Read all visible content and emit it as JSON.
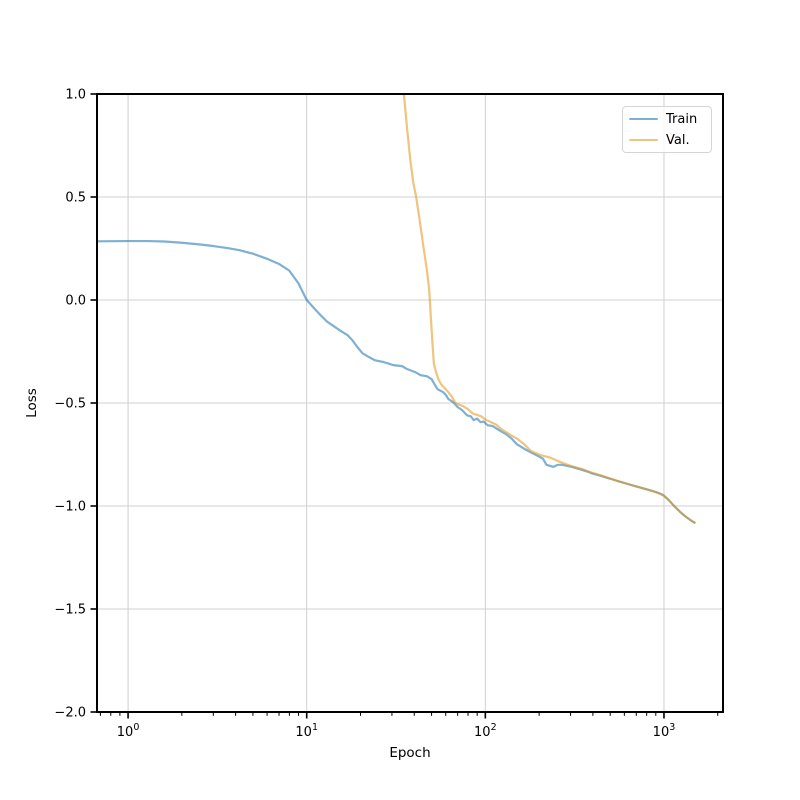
{
  "chart_data": {
    "type": "line",
    "title": "",
    "xlabel": "Epoch",
    "ylabel": "Loss",
    "x_scale": "log",
    "xlim": [
      0.67,
      2140
    ],
    "ylim": [
      -2.0,
      1.0
    ],
    "grid": true,
    "background_color": "#ffffff",
    "grid_color": "#d0d0d0",
    "spine_color": "#000000",
    "x_ticks": [
      {
        "value": 1,
        "base": "10",
        "exp": "0"
      },
      {
        "value": 10,
        "base": "10",
        "exp": "1"
      },
      {
        "value": 100,
        "base": "10",
        "exp": "2"
      },
      {
        "value": 1000,
        "base": "10",
        "exp": "3"
      }
    ],
    "y_ticks": [
      {
        "value": 1.0,
        "label": "1.0"
      },
      {
        "value": 0.5,
        "label": "0.5"
      },
      {
        "value": 0.0,
        "label": "0.0"
      },
      {
        "value": -0.5,
        "label": "−0.5"
      },
      {
        "value": -1.0,
        "label": "−1.0"
      },
      {
        "value": -1.5,
        "label": "−1.5"
      },
      {
        "value": -2.0,
        "label": "−2.0"
      }
    ],
    "legend": {
      "position": "upper-right",
      "entries": [
        {
          "label": "Train",
          "display_color": "#7db0d3"
        },
        {
          "label": "Val.",
          "display_color": "#efc47f"
        }
      ]
    },
    "series": [
      {
        "name": "Train",
        "color": "#1f77b4",
        "opacity": 0.58,
        "points": [
          [
            0.67,
            0.285
          ],
          [
            1.0,
            0.286
          ],
          [
            1.3,
            0.286
          ],
          [
            1.6,
            0.284
          ],
          [
            2.0,
            0.278
          ],
          [
            2.5,
            0.27
          ],
          [
            3.0,
            0.262
          ],
          [
            3.6,
            0.252
          ],
          [
            4.2,
            0.242
          ],
          [
            5.0,
            0.225
          ],
          [
            6.0,
            0.2
          ],
          [
            7.0,
            0.175
          ],
          [
            8.0,
            0.142
          ],
          [
            9.0,
            0.08
          ],
          [
            10.0,
            0.0
          ],
          [
            11.0,
            -0.04
          ],
          [
            12.0,
            -0.075
          ],
          [
            13.0,
            -0.105
          ],
          [
            14.1,
            -0.126
          ],
          [
            15.5,
            -0.15
          ],
          [
            16.9,
            -0.17
          ],
          [
            18.0,
            -0.195
          ],
          [
            19.2,
            -0.228
          ],
          [
            20.5,
            -0.258
          ],
          [
            21.8,
            -0.272
          ],
          [
            24.0,
            -0.292
          ],
          [
            26.9,
            -0.301
          ],
          [
            30.5,
            -0.316
          ],
          [
            34.2,
            -0.321
          ],
          [
            36.4,
            -0.335
          ],
          [
            40.5,
            -0.35
          ],
          [
            43.4,
            -0.365
          ],
          [
            47.0,
            -0.37
          ],
          [
            50.0,
            -0.384
          ],
          [
            52.0,
            -0.41
          ],
          [
            54.0,
            -0.433
          ],
          [
            58.0,
            -0.447
          ],
          [
            60.0,
            -0.46
          ],
          [
            62.0,
            -0.48
          ],
          [
            66.0,
            -0.496
          ],
          [
            70.0,
            -0.52
          ],
          [
            74.0,
            -0.534
          ],
          [
            79.0,
            -0.56
          ],
          [
            83.0,
            -0.565
          ],
          [
            86.0,
            -0.583
          ],
          [
            90.0,
            -0.576
          ],
          [
            94.0,
            -0.593
          ],
          [
            98.0,
            -0.59
          ],
          [
            103.0,
            -0.608
          ],
          [
            110.0,
            -0.612
          ],
          [
            117.0,
            -0.627
          ],
          [
            122.0,
            -0.637
          ],
          [
            130.0,
            -0.65
          ],
          [
            140.0,
            -0.672
          ],
          [
            150.0,
            -0.7
          ],
          [
            165.0,
            -0.722
          ],
          [
            180.0,
            -0.74
          ],
          [
            195.0,
            -0.755
          ],
          [
            210.0,
            -0.77
          ],
          [
            220.0,
            -0.8
          ],
          [
            240.0,
            -0.81
          ],
          [
            255.0,
            -0.8
          ],
          [
            270.0,
            -0.8
          ],
          [
            290.0,
            -0.806
          ],
          [
            310.0,
            -0.812
          ],
          [
            340.0,
            -0.822
          ],
          [
            370.0,
            -0.832
          ],
          [
            400.0,
            -0.843
          ],
          [
            440.0,
            -0.853
          ],
          [
            480.0,
            -0.863
          ],
          [
            520.0,
            -0.872
          ],
          [
            560.0,
            -0.881
          ],
          [
            620.0,
            -0.892
          ],
          [
            680.0,
            -0.902
          ],
          [
            740.0,
            -0.911
          ],
          [
            800.0,
            -0.919
          ],
          [
            860.0,
            -0.927
          ],
          [
            920.0,
            -0.935
          ],
          [
            970.0,
            -0.943
          ],
          [
            1000.0,
            -0.95
          ],
          [
            1060.0,
            -0.97
          ],
          [
            1120.0,
            -0.993
          ],
          [
            1180.0,
            -1.013
          ],
          [
            1250.0,
            -1.034
          ],
          [
            1320.0,
            -1.051
          ],
          [
            1390.0,
            -1.065
          ],
          [
            1450.0,
            -1.076
          ],
          [
            1500.0,
            -1.083
          ]
        ]
      },
      {
        "name": "Val.",
        "color": "#e59a23",
        "opacity": 0.58,
        "points": [
          [
            35.0,
            1.0
          ],
          [
            36.5,
            0.83
          ],
          [
            38.0,
            0.68
          ],
          [
            39.5,
            0.57
          ],
          [
            41.0,
            0.5
          ],
          [
            43.0,
            0.38
          ],
          [
            45.0,
            0.26
          ],
          [
            47.0,
            0.15
          ],
          [
            48.5,
            0.05
          ],
          [
            49.5,
            -0.08
          ],
          [
            50.5,
            -0.2
          ],
          [
            51.5,
            -0.31
          ],
          [
            53.0,
            -0.35
          ],
          [
            54.5,
            -0.384
          ],
          [
            57.0,
            -0.413
          ],
          [
            60.0,
            -0.433
          ],
          [
            62.0,
            -0.447
          ],
          [
            65.0,
            -0.47
          ],
          [
            68.0,
            -0.5
          ],
          [
            71.0,
            -0.507
          ],
          [
            75.0,
            -0.515
          ],
          [
            80.0,
            -0.53
          ],
          [
            85.0,
            -0.551
          ],
          [
            90.0,
            -0.558
          ],
          [
            95.0,
            -0.565
          ],
          [
            100.0,
            -0.58
          ],
          [
            107.0,
            -0.592
          ],
          [
            115.0,
            -0.605
          ],
          [
            122.0,
            -0.625
          ],
          [
            130.0,
            -0.64
          ],
          [
            140.0,
            -0.658
          ],
          [
            150.0,
            -0.672
          ],
          [
            165.0,
            -0.7
          ],
          [
            180.0,
            -0.733
          ],
          [
            200.0,
            -0.75
          ],
          [
            215.0,
            -0.758
          ],
          [
            231.0,
            -0.765
          ],
          [
            245.0,
            -0.775
          ],
          [
            260.0,
            -0.785
          ],
          [
            285.0,
            -0.798
          ],
          [
            300.0,
            -0.805
          ],
          [
            330.0,
            -0.815
          ],
          [
            360.0,
            -0.825
          ],
          [
            385.0,
            -0.835
          ],
          [
            420.0,
            -0.845
          ],
          [
            460.0,
            -0.856
          ],
          [
            500.0,
            -0.867
          ],
          [
            550.0,
            -0.878
          ],
          [
            600.0,
            -0.888
          ],
          [
            650.0,
            -0.897
          ],
          [
            700.0,
            -0.905
          ],
          [
            750.0,
            -0.912
          ],
          [
            800.0,
            -0.919
          ],
          [
            850.0,
            -0.926
          ],
          [
            900.0,
            -0.933
          ],
          [
            950.0,
            -0.941
          ],
          [
            1000.0,
            -0.95
          ],
          [
            1060.0,
            -0.97
          ],
          [
            1120.0,
            -0.993
          ],
          [
            1180.0,
            -1.013
          ],
          [
            1250.0,
            -1.034
          ],
          [
            1320.0,
            -1.051
          ],
          [
            1390.0,
            -1.065
          ],
          [
            1450.0,
            -1.076
          ],
          [
            1500.0,
            -1.082
          ]
        ]
      }
    ]
  }
}
